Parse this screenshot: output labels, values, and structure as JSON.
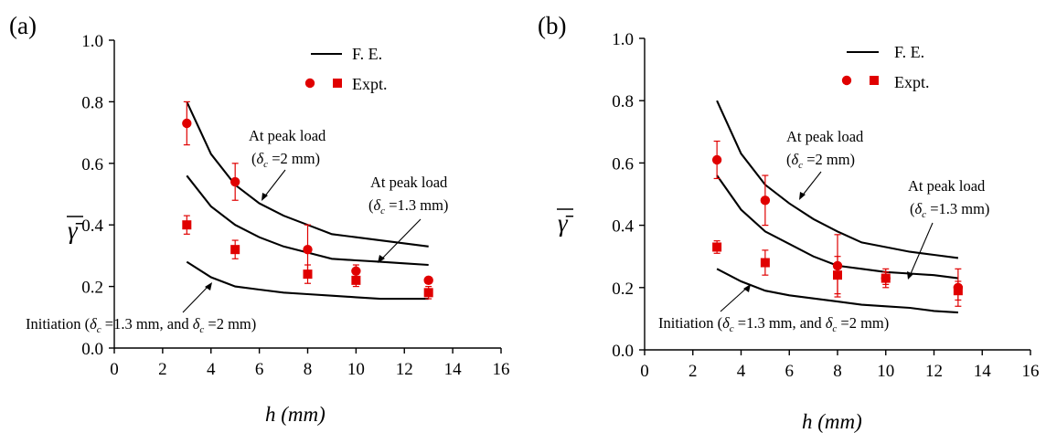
{
  "chart_data": [
    {
      "type": "line",
      "panel_label": "(a)",
      "xlabel": "h (mm)",
      "ylabel": "γ̄",
      "xlim": [
        0,
        16
      ],
      "ylim": [
        0,
        1.0
      ],
      "x_ticks": [
        "0",
        "2",
        "4",
        "6",
        "8",
        "10",
        "12",
        "14",
        "16"
      ],
      "y_ticks": [
        "0.0",
        "0.2",
        "0.4",
        "0.6",
        "0.8",
        "1.0"
      ],
      "grid": false,
      "legend": {
        "placement": "top-center",
        "fe_label": "F. E.",
        "expt_label": "Expt."
      },
      "series": [
        {
          "type": "line",
          "x": [
            3,
            4,
            5,
            6,
            7,
            8,
            9,
            10,
            11,
            12,
            13
          ],
          "values": [
            0.8,
            0.63,
            0.53,
            0.47,
            0.43,
            0.4,
            0.37,
            0.36,
            0.35,
            0.34,
            0.33
          ]
        },
        {
          "type": "line",
          "x": [
            3,
            4,
            5,
            6,
            7,
            8,
            9,
            10,
            11,
            12,
            13
          ],
          "values": [
            0.56,
            0.46,
            0.4,
            0.36,
            0.33,
            0.31,
            0.29,
            0.285,
            0.28,
            0.275,
            0.27
          ]
        },
        {
          "type": "line",
          "x": [
            3,
            4,
            5,
            6,
            7,
            8,
            9,
            10,
            11,
            12,
            13
          ],
          "values": [
            0.28,
            0.23,
            0.2,
            0.19,
            0.18,
            0.175,
            0.17,
            0.165,
            0.16,
            0.16,
            0.16
          ]
        },
        {
          "type": "scatter",
          "marker": "circle",
          "x": [
            3,
            5,
            8,
            10,
            13
          ],
          "values": [
            0.73,
            0.54,
            0.32,
            0.25,
            0.22
          ],
          "err": [
            0.07,
            0.06,
            0.08,
            0.02,
            0.01
          ]
        },
        {
          "type": "scatter",
          "marker": "square",
          "x": [
            3,
            5,
            8,
            10,
            13
          ],
          "values": [
            0.4,
            0.32,
            0.24,
            0.22,
            0.18
          ],
          "err": [
            0.03,
            0.03,
            0.03,
            0.02,
            0.02
          ]
        }
      ],
      "annotations": [
        {
          "line1": "At peak load",
          "line2_open": "(",
          "delta": "δ",
          "sub": "c",
          "line2_rest": " =2 mm)"
        },
        {
          "line1": "At peak load",
          "line2_open": "(",
          "delta": "δ",
          "sub": "c",
          "line2_rest": " =1.3 mm)"
        },
        {
          "line1": "Initiation (",
          "delta": "δ",
          "sub": "c",
          "line2_rest": " =1.3 mm, and ",
          "delta2": "δ",
          "sub2": "c",
          "line2_rest2": " =2 mm)"
        }
      ]
    },
    {
      "type": "line",
      "panel_label": "(b)",
      "xlabel": "h (mm)",
      "ylabel": "γ̄",
      "xlim": [
        0,
        16
      ],
      "ylim": [
        0,
        1.0
      ],
      "x_ticks": [
        "0",
        "2",
        "4",
        "6",
        "8",
        "10",
        "12",
        "14",
        "16"
      ],
      "y_ticks": [
        "0.0",
        "0.2",
        "0.4",
        "0.6",
        "0.8",
        "1.0"
      ],
      "grid": false,
      "legend": {
        "placement": "top-center",
        "fe_label": "F. E.",
        "expt_label": "Expt."
      },
      "series": [
        {
          "type": "line",
          "x": [
            3,
            4,
            5,
            6,
            7,
            8,
            9,
            10,
            11,
            12,
            13
          ],
          "values": [
            0.8,
            0.63,
            0.53,
            0.47,
            0.42,
            0.38,
            0.345,
            0.33,
            0.315,
            0.305,
            0.295
          ]
        },
        {
          "type": "line",
          "x": [
            3,
            4,
            5,
            6,
            7,
            8,
            9,
            10,
            11,
            12,
            13
          ],
          "values": [
            0.56,
            0.45,
            0.38,
            0.34,
            0.3,
            0.27,
            0.26,
            0.25,
            0.245,
            0.24,
            0.23
          ]
        },
        {
          "type": "line",
          "x": [
            3,
            4,
            5,
            6,
            7,
            8,
            9,
            10,
            11,
            12,
            13
          ],
          "values": [
            0.26,
            0.22,
            0.19,
            0.175,
            0.165,
            0.155,
            0.145,
            0.14,
            0.135,
            0.125,
            0.12
          ]
        },
        {
          "type": "scatter",
          "marker": "circle",
          "x": [
            3,
            5,
            8,
            10,
            13
          ],
          "values": [
            0.61,
            0.48,
            0.27,
            0.23,
            0.2
          ],
          "err": [
            0.06,
            0.08,
            0.1,
            0.03,
            0.06
          ]
        },
        {
          "type": "scatter",
          "marker": "square",
          "x": [
            3,
            5,
            8,
            10,
            13
          ],
          "values": [
            0.33,
            0.28,
            0.24,
            0.23,
            0.19
          ],
          "err": [
            0.02,
            0.04,
            0.06,
            0.02,
            0.03
          ]
        }
      ],
      "annotations": [
        {
          "line1": "At peak load",
          "line2_open": "(",
          "delta": "δ",
          "sub": "c",
          "line2_rest": " =2 mm)"
        },
        {
          "line1": "At peak load",
          "line2_open": "(",
          "delta": "δ",
          "sub": "c",
          "line2_rest": " =1.3 mm)"
        },
        {
          "line1": "Initiation (",
          "delta": "δ",
          "sub": "c",
          "line2_rest": " =1.3 mm, and ",
          "delta2": "δ",
          "sub2": "c",
          "line2_rest2": " =2 mm)"
        }
      ]
    }
  ],
  "colors": {
    "experiment": "#e00000",
    "fe_line": "#000000"
  }
}
